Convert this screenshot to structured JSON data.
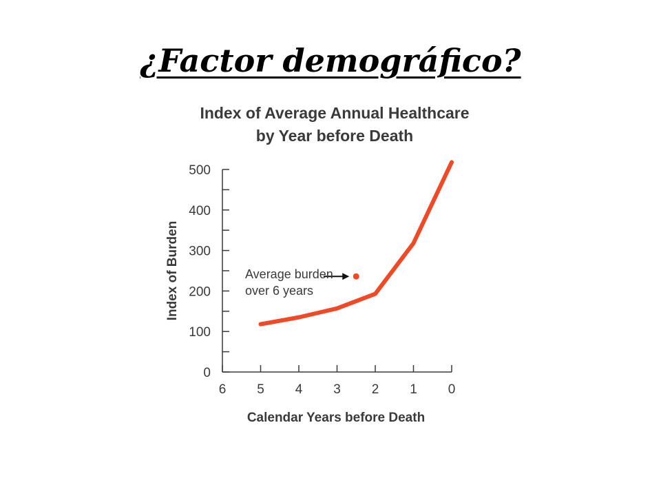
{
  "slide": {
    "title": "¿Factor demográfico?"
  },
  "chart_data": {
    "type": "line",
    "title_lines": [
      "Index of Average Annual Healthcare",
      "by Year before Death"
    ],
    "xlabel": "Calendar Years before Death",
    "ylabel": "Index of Burden",
    "x_ticks": [
      6,
      5,
      4,
      3,
      2,
      1,
      0
    ],
    "y_ticks": [
      0,
      100,
      200,
      300,
      400,
      500
    ],
    "xlim": [
      6,
      0
    ],
    "ylim": [
      0,
      500
    ],
    "grid": false,
    "series": [
      {
        "x": [
          5,
          4,
          3,
          2,
          1,
          0
        ],
        "values": [
          118,
          135,
          157,
          193,
          318,
          518
        ],
        "color": "#ef4a25"
      }
    ],
    "annotation": {
      "lines": [
        "Average burden",
        "over 6 years"
      ],
      "point": {
        "x": 2.5,
        "y": 236
      },
      "color": "#ef4a25"
    },
    "axis_color": "#3a3a3a"
  }
}
